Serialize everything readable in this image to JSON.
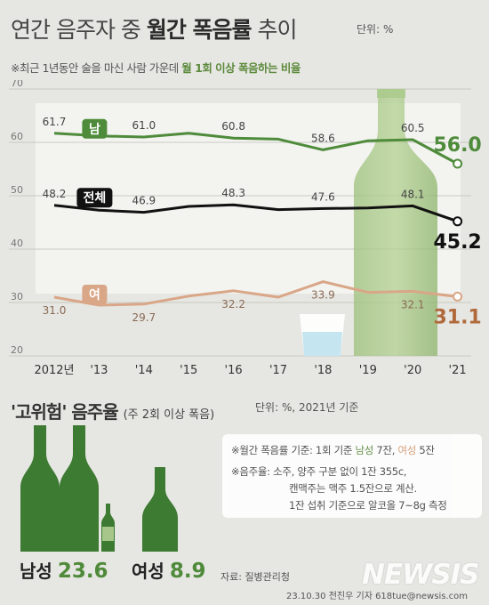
{
  "header": {
    "title_plain": "연간 음주자 중 ",
    "title_bold": "월간 폭음률",
    "title_tail": " 추이",
    "unit": "단위: %",
    "subtitle_prefix": "※최근 1년동안 술을 마신 사람 가운데 ",
    "subtitle_highlight": "월 1회 이상 폭음하는 비율"
  },
  "chart_data": {
    "type": "line",
    "categories": [
      "2012년",
      "'13",
      "'14",
      "'15",
      "'16",
      "'17",
      "'18",
      "'19",
      "'20",
      "'21"
    ],
    "ylim": [
      20,
      70
    ],
    "yticks": [
      "20",
      "30",
      "40",
      "50",
      "60",
      "70"
    ],
    "grid": true,
    "series": [
      {
        "name": "남",
        "color": "#4e8b3a",
        "values": [
          61.7,
          61.2,
          61.0,
          61.7,
          60.8,
          60.6,
          58.6,
          60.3,
          60.5,
          56.0
        ],
        "labels": [
          "61.7",
          "",
          "61.0",
          "",
          "60.8",
          "",
          "58.6",
          "",
          "60.5",
          "56.0"
        ]
      },
      {
        "name": "전체",
        "color": "#111111",
        "values": [
          48.2,
          47.3,
          46.9,
          48.0,
          48.3,
          47.4,
          47.6,
          47.7,
          48.1,
          45.2
        ],
        "labels": [
          "48.2",
          "",
          "46.9",
          "",
          "48.3",
          "",
          "47.6",
          "",
          "48.1",
          "45.2"
        ]
      },
      {
        "name": "여",
        "color": "#d9a687",
        "values": [
          31.0,
          29.5,
          29.7,
          31.2,
          32.2,
          31.0,
          33.9,
          31.9,
          32.1,
          31.1
        ],
        "labels": [
          "31.0",
          "",
          "29.7",
          "",
          "32.2",
          "",
          "33.9",
          "",
          "32.1",
          "31.1"
        ]
      }
    ]
  },
  "section2": {
    "title_quote": "'고위험' 음주율",
    "title_paren": "(주 2회 이상 폭음)",
    "note": "단위: %, 2021년 기준",
    "male_label": "남성",
    "male_value": "23.6",
    "female_label": "여성",
    "female_value": "8.9",
    "info_line1_a": "※월간 폭음률 기준: 1회 기준 ",
    "info_line1_male": "남성",
    "info_line1_b": " 7잔, ",
    "info_line1_female": "여성",
    "info_line1_c": " 5잔",
    "info_line2": "※음주율: 소주, 양주 구분 없이 1잔 355c,",
    "info_line3": "캔맥주는 맥주 1.5잔으로 계산.",
    "info_line4": "1잔 섭취 기준으로 알코올 7~8g 측정"
  },
  "footer": {
    "source": "자료: 질병관리청",
    "credit": "23.10.30 전진우 기자 618tue@newsis.com",
    "logo": "NEWSIS"
  },
  "colors": {
    "male": "#4e8b3a",
    "female": "#d9a687",
    "total": "#111111",
    "bottle": "#7fa85c",
    "bottle_dark": "#2f6a2a"
  }
}
